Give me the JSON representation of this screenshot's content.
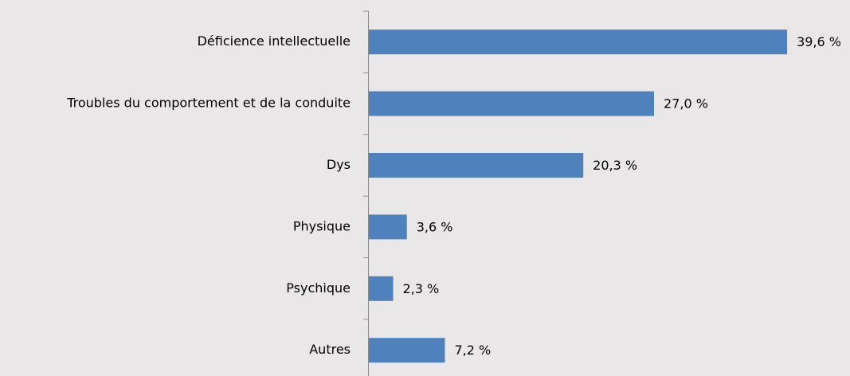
{
  "chart_data": {
    "type": "barh",
    "categories": [
      "Déficience intellectuelle",
      "Troubles du comportement et de la conduite",
      "Dys",
      "Physique",
      "Psychique",
      "Autres"
    ],
    "values": [
      39.6,
      27.0,
      20.3,
      3.6,
      2.3,
      7.2
    ],
    "value_labels": [
      "39,6 %",
      "27,0 %",
      "20,3 %",
      "3,6 %",
      "2,3 %",
      "7,2 %"
    ],
    "color": "#4f81bd"
  }
}
